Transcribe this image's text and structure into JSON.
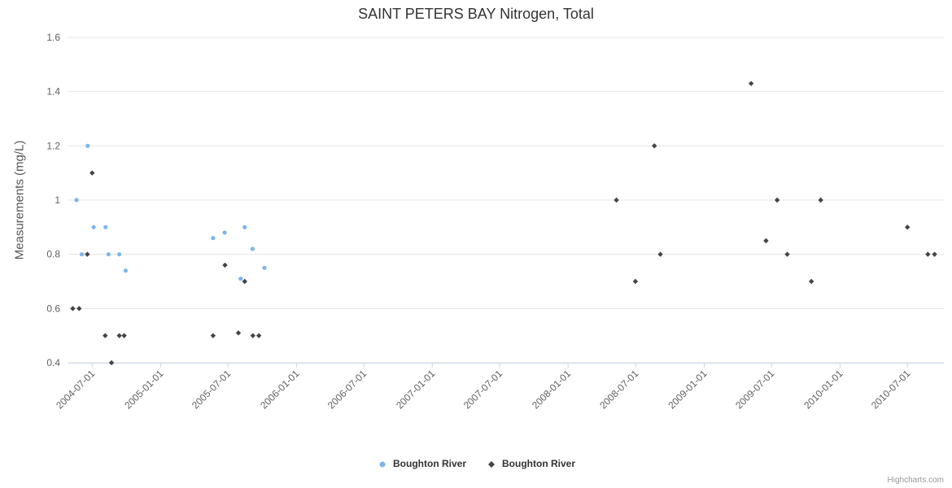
{
  "title": "SAINT PETERS BAY Nitrogen, Total",
  "credits": "Highcharts.com",
  "chart_data": {
    "type": "scatter",
    "title": "SAINT PETERS BAY Nitrogen, Total",
    "xlabel": "",
    "ylabel": "Measurements (mg/L)",
    "ylim": [
      0.4,
      1.6
    ],
    "yticks": [
      0.4,
      0.6,
      0.8,
      1,
      1.2,
      1.4,
      1.6
    ],
    "xlim": [
      "2004-04-28",
      "2010-10-07"
    ],
    "xticks": [
      "2004-07-01",
      "2005-01-01",
      "2005-07-01",
      "2006-01-01",
      "2006-07-01",
      "2007-01-01",
      "2007-07-01",
      "2008-01-01",
      "2008-07-01",
      "2009-01-01",
      "2009-07-01",
      "2010-01-01",
      "2010-07-01"
    ],
    "grid": "horizontal-only",
    "legend_position": "bottom-center",
    "series": [
      {
        "name": "Boughton River",
        "color": "#7cb5ec",
        "marker": "circle",
        "points": [
          {
            "x": "2004-05-20",
            "y": 1.0
          },
          {
            "x": "2004-06-03",
            "y": 0.8
          },
          {
            "x": "2004-06-19",
            "y": 1.2
          },
          {
            "x": "2004-07-05",
            "y": 0.9
          },
          {
            "x": "2004-08-06",
            "y": 0.9
          },
          {
            "x": "2004-08-14",
            "y": 0.8
          },
          {
            "x": "2004-09-12",
            "y": 0.8
          },
          {
            "x": "2004-09-29",
            "y": 0.74
          },
          {
            "x": "2005-05-22",
            "y": 0.86
          },
          {
            "x": "2005-06-22",
            "y": 0.88
          },
          {
            "x": "2005-08-04",
            "y": 0.71
          },
          {
            "x": "2005-08-15",
            "y": 0.9
          },
          {
            "x": "2005-09-05",
            "y": 0.82
          },
          {
            "x": "2005-10-07",
            "y": 0.75
          }
        ]
      },
      {
        "name": "Boughton River",
        "color": "#434348",
        "marker": "diamond",
        "points": [
          {
            "x": "2004-05-10",
            "y": 0.6
          },
          {
            "x": "2004-05-27",
            "y": 0.6
          },
          {
            "x": "2004-06-18",
            "y": 0.8
          },
          {
            "x": "2004-07-01",
            "y": 1.1
          },
          {
            "x": "2004-08-05",
            "y": 0.5
          },
          {
            "x": "2004-08-22",
            "y": 0.4
          },
          {
            "x": "2004-09-12",
            "y": 0.5
          },
          {
            "x": "2004-09-25",
            "y": 0.5
          },
          {
            "x": "2005-05-22",
            "y": 0.5
          },
          {
            "x": "2005-06-23",
            "y": 0.76
          },
          {
            "x": "2005-07-29",
            "y": 0.51
          },
          {
            "x": "2005-08-15",
            "y": 0.7
          },
          {
            "x": "2005-09-06",
            "y": 0.5
          },
          {
            "x": "2005-09-22",
            "y": 0.5
          },
          {
            "x": "2008-05-10",
            "y": 1.0
          },
          {
            "x": "2008-06-30",
            "y": 0.7
          },
          {
            "x": "2008-08-20",
            "y": 1.2
          },
          {
            "x": "2008-09-05",
            "y": 0.8
          },
          {
            "x": "2009-05-07",
            "y": 1.43
          },
          {
            "x": "2009-06-16",
            "y": 0.85
          },
          {
            "x": "2009-07-16",
            "y": 1.0
          },
          {
            "x": "2009-08-12",
            "y": 0.8
          },
          {
            "x": "2009-10-16",
            "y": 0.7
          },
          {
            "x": "2009-11-10",
            "y": 1.0
          },
          {
            "x": "2010-07-01",
            "y": 0.9
          },
          {
            "x": "2010-08-25",
            "y": 0.8
          },
          {
            "x": "2010-09-12",
            "y": 0.8
          }
        ]
      }
    ]
  }
}
